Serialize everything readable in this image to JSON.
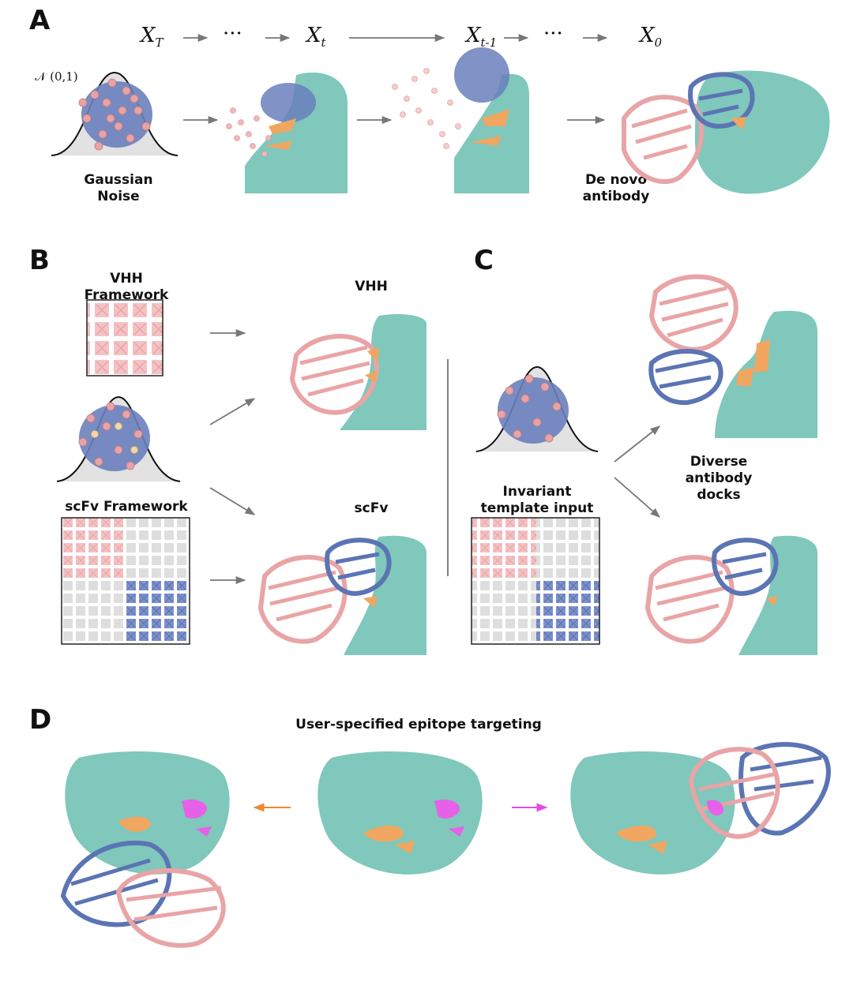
{
  "panels": {
    "a": "A",
    "b": "B",
    "c": "C",
    "d": "D"
  },
  "panel_a": {
    "sequence": {
      "xT": "X",
      "xT_sub": "T",
      "dots1": "···",
      "xt": "X",
      "xt_sub": "t",
      "xt1": "X",
      "xt1_sub": "t-1",
      "dots2": "···",
      "x0": "X",
      "x0_sub": "0"
    },
    "normal_label": "𝒩 (0,1)",
    "gaussian_label_line1": "Gaussian",
    "gaussian_label_line2": "Noise",
    "denovo_label_line1": "De novo",
    "denovo_label_line2": "antibody"
  },
  "panel_b": {
    "vhh_framework_line1": "VHH",
    "vhh_framework_line2": "Framework",
    "scfv_framework": "scFv Framework",
    "vhh_output": "VHH",
    "scfv_output": "scFv"
  },
  "panel_c": {
    "template_line1": "Invariant",
    "template_line2": "template input",
    "diverse_line1": "Diverse",
    "diverse_line2": "antibody",
    "diverse_line3": "docks"
  },
  "panel_d": {
    "title": "User-specified epitope targeting"
  },
  "colors": {
    "antigen": "#7fc8bb",
    "heavy": "#e9a4a6",
    "light": "#5b74b4",
    "epitope_orange": "#f0a660",
    "epitope_magenta": "#e661e8",
    "arrow_gray": "#777777",
    "arrow_orange": "#ee8833",
    "arrow_magenta": "#e24ce6"
  }
}
